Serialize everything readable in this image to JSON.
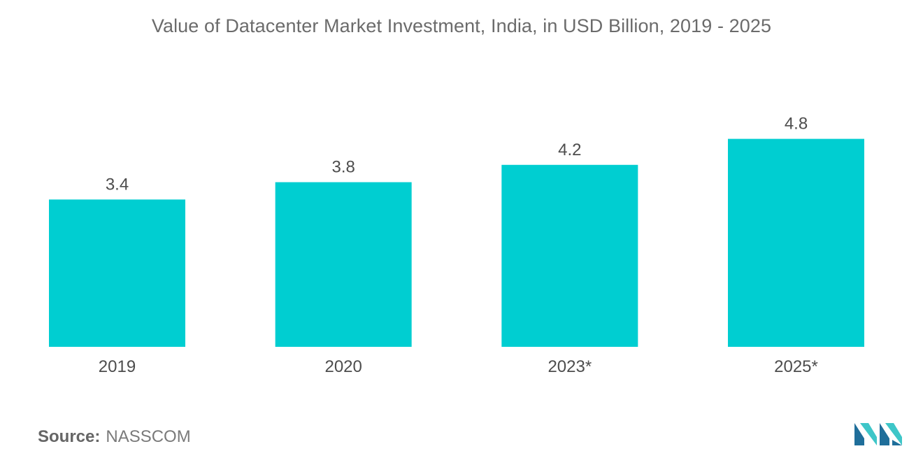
{
  "colors": {
    "bar": "#00ced1",
    "logo_dark": "#1f6e9a",
    "logo_light": "#3ec6c8"
  },
  "chart_data": {
    "type": "bar",
    "title": "Value of Datacenter Market Investment, India, in USD Billion, 2019 - 2025",
    "categories": [
      "2019",
      "2020",
      "2023*",
      "2025*"
    ],
    "values": [
      3.4,
      3.8,
      4.2,
      4.8
    ],
    "xlabel": "",
    "ylabel": "",
    "ylim": [
      0,
      5.1
    ],
    "grid": false,
    "legend": "none",
    "value_labels": true
  },
  "source": {
    "label": "Source:",
    "value": "NASSCOM"
  },
  "logo": {
    "icon": "mordor-intelligence-logo-icon"
  }
}
